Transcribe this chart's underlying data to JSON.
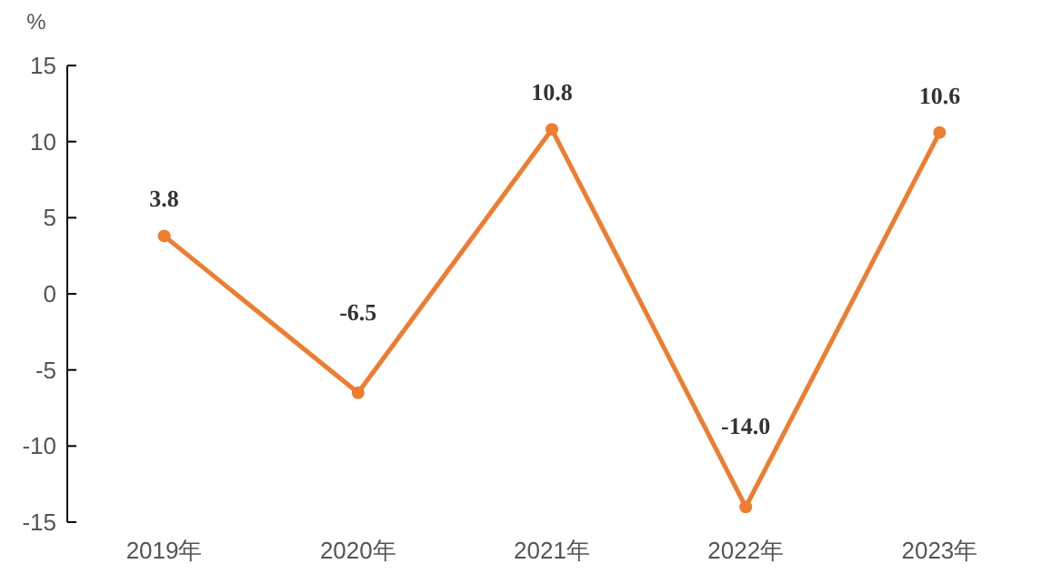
{
  "chart_data": {
    "type": "line",
    "ylabel": "%",
    "categories": [
      "2019年",
      "2020年",
      "2021年",
      "2022年",
      "2023年"
    ],
    "series": [
      {
        "color": "#ed7d31",
        "values": [
          3.8,
          -6.5,
          10.8,
          -14.0,
          10.6
        ]
      }
    ],
    "value_labels": [
      "3.8",
      "-6.5",
      "10.8",
      "-14.0",
      "10.6"
    ],
    "ylim": [
      -15,
      15
    ],
    "yticks": [
      -15,
      -10,
      -5,
      0,
      5,
      10,
      15
    ],
    "marker": "circle",
    "line_style": "solid",
    "grid": false
  }
}
